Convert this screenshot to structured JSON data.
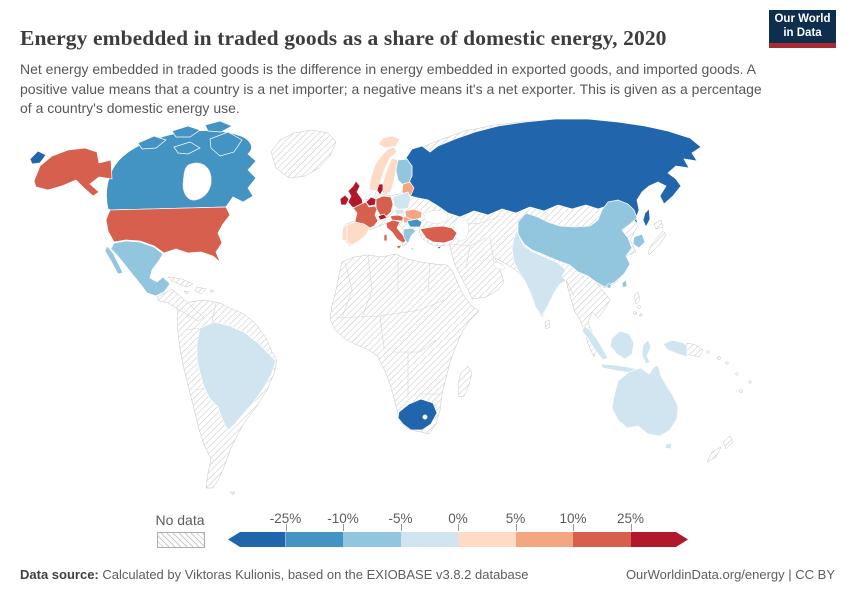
{
  "header": {
    "title": "Energy embedded in traded goods as a share of domestic energy, 2020",
    "subtitle": "Net energy embedded in traded goods is the difference in energy embedded in exported goods, and imported goods. A positive value means that a country is a net importer; a negative means it's a net exporter. This is given as a percentage of a country's domestic energy use.",
    "logo": {
      "line1": "Our World",
      "line2": "in Data",
      "bg_color": "#0d2e4d",
      "stripe_color": "#a82a33"
    }
  },
  "legend": {
    "no_data_label": "No data",
    "ticks": [
      "-25%",
      "-10%",
      "-5%",
      "0%",
      "5%",
      "10%",
      "25%"
    ],
    "bin_colors": [
      "#2166ac",
      "#4393c3",
      "#92c5de",
      "#d1e5f0",
      "#fddbc7",
      "#f4a582",
      "#d6604d",
      "#b2182b"
    ]
  },
  "footer": {
    "source_label": "Data source:",
    "source_text": " Calculated by Viktoras Kulionis, based on the EXIOBASE v3.8.2 database",
    "credit": "OurWorldinData.org/energy | CC BY"
  },
  "map": {
    "palette": {
      "dark_blue": "#2166ac",
      "med_blue": "#4393c3",
      "light_blue": "#92c5de",
      "pale_blue": "#d1e5f0",
      "pale_red": "#fddbc7",
      "orange": "#f4a582",
      "med_red": "#d6604d",
      "dark_red": "#b2182b"
    },
    "regions": {
      "eurasia": "hatch",
      "greenland": "hatch",
      "central-america": "hatch",
      "cuba": "hatch",
      "hispaniola": "hatch",
      "jamaica": "hatch",
      "puerto-rico": "hatch",
      "south-america": "hatch",
      "falkland-islands": "hatch",
      "africa": "hatch",
      "madagascar": "hatch",
      "sri-lanka": "hatch",
      "japan": "hatch",
      "philippines": "hatch",
      "new-guinea-east": "hatch",
      "new-zealand": "hatch",
      "pacific-islands": "hatch",
      "russia": "dark_blue",
      "russia-west-bering": "dark_blue",
      "sakhalin": "dark_blue",
      "south-africa": "dark_blue",
      "cyprus": "dark_blue",
      "canada": "med_blue",
      "canadian-arctic": "med_blue",
      "bulgaria": "med_blue",
      "mexico": "light_blue",
      "china": "light_blue",
      "finland": "light_blue",
      "greece": "light_blue",
      "south-korea": "light_blue",
      "taiwan": "light_blue",
      "hainan": "light_blue",
      "brazil": "pale_blue",
      "india": "pale_blue",
      "australia": "pale_blue",
      "tasmania": "pale_blue",
      "indonesia": "pale_blue",
      "poland": "pale_blue",
      "czechia": "pale_blue",
      "spain": "pale_red",
      "portugal": "pale_red",
      "norway": "pale_red",
      "sweden": "pale_red",
      "iceland": "pale_red",
      "baltic-states": "orange",
      "romania": "orange",
      "hungary": "orange",
      "united-states": "med_red",
      "alaska": "med_red",
      "hawaii": "med_red",
      "france": "med_red",
      "germany": "med_red",
      "italy": "med_red",
      "austria": "med_red",
      "turkey": "med_red",
      "united-kingdom": "dark_red",
      "ireland": "dark_red",
      "belgium-netherlands": "dark_red",
      "switzerland": "dark_red",
      "denmark": "dark_red"
    }
  },
  "chart_data": {
    "type": "choropleth",
    "title": "Energy embedded in traded goods as a share of domestic energy, 2020",
    "unit": "% of domestic energy use",
    "legend_ticks": [
      "-25%",
      "-10%",
      "-5%",
      "0%",
      "5%",
      "10%",
      "25%"
    ],
    "bins": [
      {
        "range": "below -25%",
        "color": "#2166ac",
        "countries": [
          "Russia",
          "South Africa",
          "Cyprus"
        ]
      },
      {
        "range": "-25% to -10%",
        "color": "#4393c3",
        "countries": [
          "Canada",
          "Bulgaria"
        ]
      },
      {
        "range": "-10% to -5%",
        "color": "#92c5de",
        "countries": [
          "Mexico",
          "China",
          "Finland",
          "Greece",
          "South Korea",
          "Taiwan"
        ]
      },
      {
        "range": "-5% to 0%",
        "color": "#d1e5f0",
        "countries": [
          "Brazil",
          "India",
          "Australia",
          "Indonesia",
          "Malaysia",
          "Poland",
          "Czechia"
        ]
      },
      {
        "range": "0% to 5%",
        "color": "#fddbc7",
        "countries": [
          "Spain",
          "Portugal",
          "Norway",
          "Sweden",
          "Iceland"
        ]
      },
      {
        "range": "5% to 10%",
        "color": "#f4a582",
        "countries": [
          "Baltic states",
          "Romania",
          "Hungary"
        ]
      },
      {
        "range": "10% to 25%",
        "color": "#d6604d",
        "countries": [
          "United States",
          "France",
          "Germany",
          "Italy",
          "Austria",
          "Turkey"
        ]
      },
      {
        "range": "above 25%",
        "color": "#b2182b",
        "countries": [
          "United Kingdom",
          "Ireland",
          "Belgium",
          "Netherlands",
          "Switzerland",
          "Denmark"
        ]
      }
    ],
    "no_data_regions": [
      "Greenland",
      "Central America",
      "Caribbean",
      "South America except Brazil",
      "Africa except South Africa",
      "Middle East",
      "Central Asia",
      "Kazakhstan",
      "Mongolia",
      "Ukraine",
      "Belarus",
      "Japan",
      "Southeast Asia mainland",
      "Philippines",
      "Madagascar",
      "New Zealand",
      "Pacific islands"
    ]
  }
}
